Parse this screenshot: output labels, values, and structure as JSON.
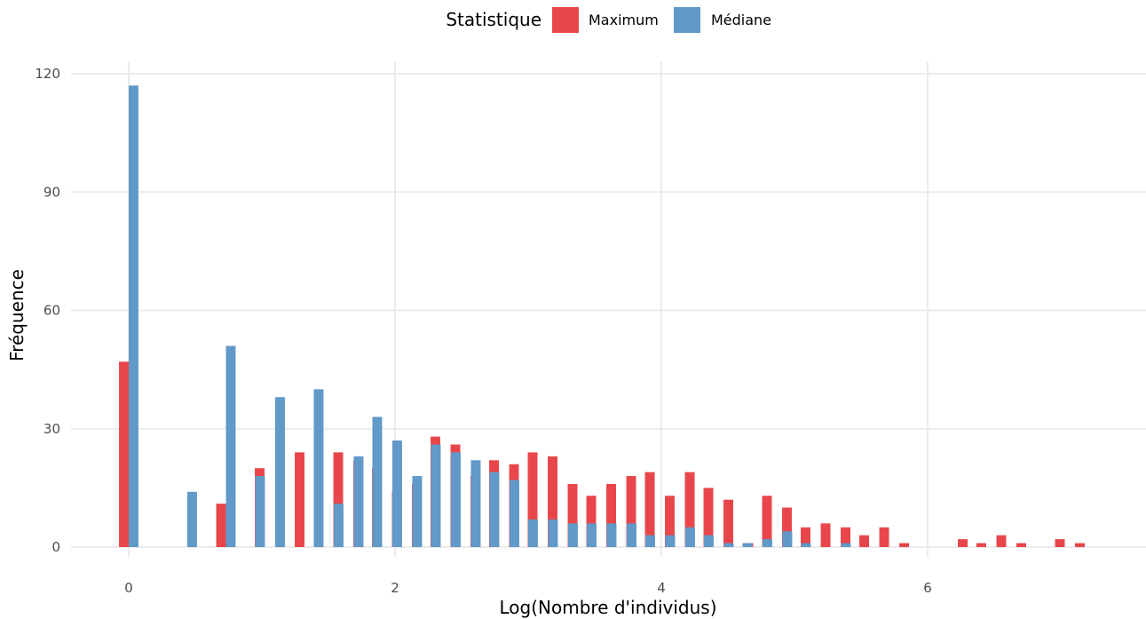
{
  "chart_data": {
    "type": "bar",
    "xlabel": "Log(Nombre d'individus)",
    "ylabel": "Fréquence",
    "xlim": [
      -0.4,
      7.6
    ],
    "ylim": [
      0,
      120
    ],
    "x_ticks": [
      0,
      2,
      4,
      6
    ],
    "y_ticks": [
      0,
      30,
      60,
      90,
      120
    ],
    "bin_width": 0.146,
    "grid": true,
    "legend": {
      "title": "Statistique",
      "position": "top"
    },
    "series": [
      {
        "name": "Maximum",
        "color": "#E8464A",
        "x": [
          0.0,
          0.73,
          1.02,
          1.32,
          1.61,
          1.76,
          1.9,
          2.05,
          2.2,
          2.34,
          2.49,
          2.64,
          2.78,
          2.93,
          3.07,
          3.22,
          3.37,
          3.51,
          3.66,
          3.81,
          3.95,
          4.1,
          4.25,
          4.39,
          4.54,
          4.69,
          4.83,
          4.98,
          5.12,
          5.27,
          5.42,
          5.56,
          5.71,
          5.86,
          6.3,
          6.44,
          6.59,
          6.74,
          7.03,
          7.18
        ],
        "values": [
          47,
          11,
          20,
          24,
          24,
          22,
          20,
          14,
          16,
          28,
          26,
          18,
          22,
          21,
          24,
          23,
          16,
          13,
          16,
          18,
          19,
          13,
          19,
          15,
          12,
          1,
          13,
          10,
          5,
          6,
          5,
          3,
          5,
          1,
          2,
          1,
          3,
          1,
          2,
          1
        ]
      },
      {
        "name": "Médiane",
        "color": "#6199C8",
        "x": [
          0.0,
          0.44,
          0.73,
          0.95,
          1.1,
          1.39,
          1.54,
          1.69,
          1.83,
          1.98,
          2.13,
          2.27,
          2.42,
          2.57,
          2.71,
          2.86,
          3.0,
          3.15,
          3.3,
          3.44,
          3.59,
          3.74,
          3.88,
          4.03,
          4.18,
          4.32,
          4.47,
          4.61,
          4.76,
          4.91,
          5.05,
          5.35
        ],
        "values": [
          117,
          14,
          51,
          18,
          38,
          40,
          11,
          23,
          33,
          27,
          18,
          26,
          24,
          22,
          19,
          17,
          7,
          7,
          6,
          6,
          6,
          6,
          3,
          3,
          5,
          3,
          1,
          1,
          2,
          4,
          1,
          1
        ]
      }
    ]
  }
}
